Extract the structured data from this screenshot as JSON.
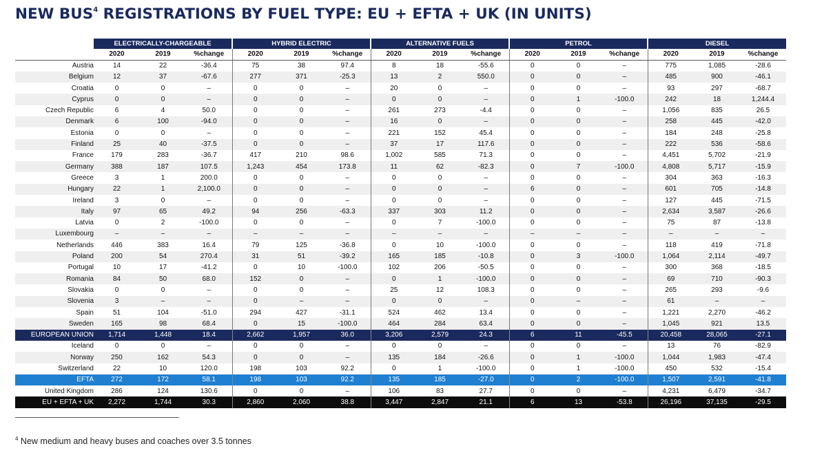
{
  "title": {
    "text": "NEW BUS",
    "sup": "4",
    "rest": " REGISTRATIONS BY FUEL TYPE: EU + EFTA + UK (IN UNITS)"
  },
  "groups": [
    "ELECTRICALLY-CHARGEABLE",
    "HYBRID ELECTRIC",
    "ALTERNATIVE FUELS",
    "PETROL",
    "DIESEL"
  ],
  "subheaders": [
    "2020",
    "2019",
    "%change"
  ],
  "rows": [
    [
      "Austria",
      "14",
      "22",
      "-36.4",
      "75",
      "38",
      "97.4",
      "8",
      "18",
      "-55.6",
      "0",
      "0",
      "–",
      "775",
      "1,085",
      "-28.6"
    ],
    [
      "Belgium",
      "12",
      "37",
      "-67.6",
      "277",
      "371",
      "-25.3",
      "13",
      "2",
      "550.0",
      "0",
      "0",
      "–",
      "485",
      "900",
      "-46.1"
    ],
    [
      "Croatia",
      "0",
      "0",
      "–",
      "0",
      "0",
      "–",
      "20",
      "0",
      "–",
      "0",
      "0",
      "–",
      "93",
      "297",
      "-68.7"
    ],
    [
      "Cyprus",
      "0",
      "0",
      "–",
      "0",
      "0",
      "–",
      "0",
      "0",
      "–",
      "0",
      "1",
      "-100.0",
      "242",
      "18",
      "1,244.4"
    ],
    [
      "Czech Republic",
      "6",
      "4",
      "50.0",
      "0",
      "0",
      "–",
      "261",
      "273",
      "-4.4",
      "0",
      "0",
      "–",
      "1,056",
      "835",
      "26.5"
    ],
    [
      "Denmark",
      "6",
      "100",
      "-94.0",
      "0",
      "0",
      "–",
      "16",
      "0",
      "–",
      "0",
      "0",
      "–",
      "258",
      "445",
      "-42.0"
    ],
    [
      "Estonia",
      "0",
      "0",
      "–",
      "0",
      "0",
      "–",
      "221",
      "152",
      "45.4",
      "0",
      "0",
      "–",
      "184",
      "248",
      "-25.8"
    ],
    [
      "Finland",
      "25",
      "40",
      "-37.5",
      "0",
      "0",
      "–",
      "37",
      "17",
      "117.6",
      "0",
      "0",
      "–",
      "222",
      "536",
      "-58.6"
    ],
    [
      "France",
      "179",
      "283",
      "-36.7",
      "417",
      "210",
      "98.6",
      "1,002",
      "585",
      "71.3",
      "0",
      "0",
      "–",
      "4,451",
      "5,702",
      "-21.9"
    ],
    [
      "Germany",
      "388",
      "187",
      "107.5",
      "1,243",
      "454",
      "173.8",
      "11",
      "62",
      "-82.3",
      "0",
      "7",
      "-100.0",
      "4,808",
      "5,717",
      "-15.9"
    ],
    [
      "Greece",
      "3",
      "1",
      "200.0",
      "0",
      "0",
      "–",
      "0",
      "0",
      "–",
      "0",
      "0",
      "–",
      "304",
      "363",
      "-16.3"
    ],
    [
      "Hungary",
      "22",
      "1",
      "2,100.0",
      "0",
      "0",
      "–",
      "0",
      "0",
      "–",
      "6",
      "0",
      "–",
      "601",
      "705",
      "-14.8"
    ],
    [
      "Ireland",
      "3",
      "0",
      "–",
      "0",
      "0",
      "–",
      "0",
      "0",
      "–",
      "0",
      "0",
      "–",
      "127",
      "445",
      "-71.5"
    ],
    [
      "Italy",
      "97",
      "65",
      "49.2",
      "94",
      "256",
      "-63.3",
      "337",
      "303",
      "11.2",
      "0",
      "0",
      "–",
      "2,634",
      "3,587",
      "-26.6"
    ],
    [
      "Latvia",
      "0",
      "2",
      "-100.0",
      "0",
      "0",
      "–",
      "0",
      "7",
      "-100.0",
      "0",
      "0",
      "–",
      "75",
      "87",
      "-13.8"
    ],
    [
      "Luxembourg",
      "–",
      "–",
      "–",
      "–",
      "–",
      "–",
      "–",
      "–",
      "–",
      "–",
      "–",
      "–",
      "–",
      "–",
      "–"
    ],
    [
      "Netherlands",
      "446",
      "383",
      "16.4",
      "79",
      "125",
      "-36.8",
      "0",
      "10",
      "-100.0",
      "0",
      "0",
      "–",
      "118",
      "419",
      "-71.8"
    ],
    [
      "Poland",
      "200",
      "54",
      "270.4",
      "31",
      "51",
      "-39.2",
      "165",
      "185",
      "-10.8",
      "0",
      "3",
      "-100.0",
      "1,064",
      "2,114",
      "-49.7"
    ],
    [
      "Portugal",
      "10",
      "17",
      "-41.2",
      "0",
      "10",
      "-100.0",
      "102",
      "206",
      "-50.5",
      "0",
      "0",
      "–",
      "300",
      "368",
      "-18.5"
    ],
    [
      "Romania",
      "84",
      "50",
      "68.0",
      "152",
      "0",
      "–",
      "0",
      "1",
      "-100.0",
      "0",
      "0",
      "–",
      "69",
      "710",
      "-90.3"
    ],
    [
      "Slovakia",
      "0",
      "0",
      "–",
      "0",
      "0",
      "–",
      "25",
      "12",
      "108.3",
      "0",
      "0",
      "–",
      "265",
      "293",
      "-9.6"
    ],
    [
      "Slovenia",
      "3",
      "–",
      "–",
      "0",
      "–",
      "–",
      "0",
      "0",
      "–",
      "0",
      "–",
      "–",
      "61",
      "–",
      "–"
    ],
    [
      "Spain",
      "51",
      "104",
      "-51.0",
      "294",
      "427",
      "-31.1",
      "524",
      "462",
      "13.4",
      "0",
      "0",
      "–",
      "1,221",
      "2,270",
      "-46.2"
    ],
    [
      "Sweden",
      "165",
      "98",
      "68.4",
      "0",
      "15",
      "-100.0",
      "464",
      "284",
      "63.4",
      "0",
      "0",
      "–",
      "1,045",
      "921",
      "13.5"
    ]
  ],
  "eu_row": [
    "EUROPEAN UNION",
    "1,714",
    "1,448",
    "18.4",
    "2,662",
    "1,957",
    "36.0",
    "3,206",
    "2,579",
    "24.3",
    "6",
    "11",
    "-45.5",
    "20,458",
    "28,065",
    "-27.1"
  ],
  "efta_rows": [
    [
      "Iceland",
      "0",
      "0",
      "–",
      "0",
      "0",
      "–",
      "0",
      "0",
      "–",
      "0",
      "0",
      "–",
      "13",
      "76",
      "-82.9"
    ],
    [
      "Norway",
      "250",
      "162",
      "54.3",
      "0",
      "0",
      "–",
      "135",
      "184",
      "-26.6",
      "0",
      "1",
      "-100.0",
      "1,044",
      "1,983",
      "-47.4"
    ],
    [
      "Switzerland",
      "22",
      "10",
      "120.0",
      "198",
      "103",
      "92.2",
      "0",
      "1",
      "-100.0",
      "0",
      "1",
      "-100.0",
      "450",
      "532",
      "-15.4"
    ]
  ],
  "efta_row": [
    "EFTA",
    "272",
    "172",
    "58.1",
    "198",
    "103",
    "92.2",
    "135",
    "185",
    "-27.0",
    "0",
    "2",
    "-100.0",
    "1,507",
    "2,591",
    "-41.8"
  ],
  "uk_row": [
    "United Kingdom",
    "286",
    "124",
    "130.6",
    "0",
    "0",
    "–",
    "106",
    "83",
    "27.7",
    "0",
    "0",
    "–",
    "4,231",
    "6,479",
    "-34.7"
  ],
  "total_row": [
    "EU + EFTA + UK",
    "2,272",
    "1,744",
    "30.3",
    "2,860",
    "2,060",
    "38.8",
    "3,447",
    "2,847",
    "21.1",
    "6",
    "13",
    "-53.8",
    "26,196",
    "37,135",
    "-29.5"
  ],
  "footnote": {
    "sup": "4",
    "text": " New medium and heavy buses and coaches over 3.5 tonnes"
  }
}
